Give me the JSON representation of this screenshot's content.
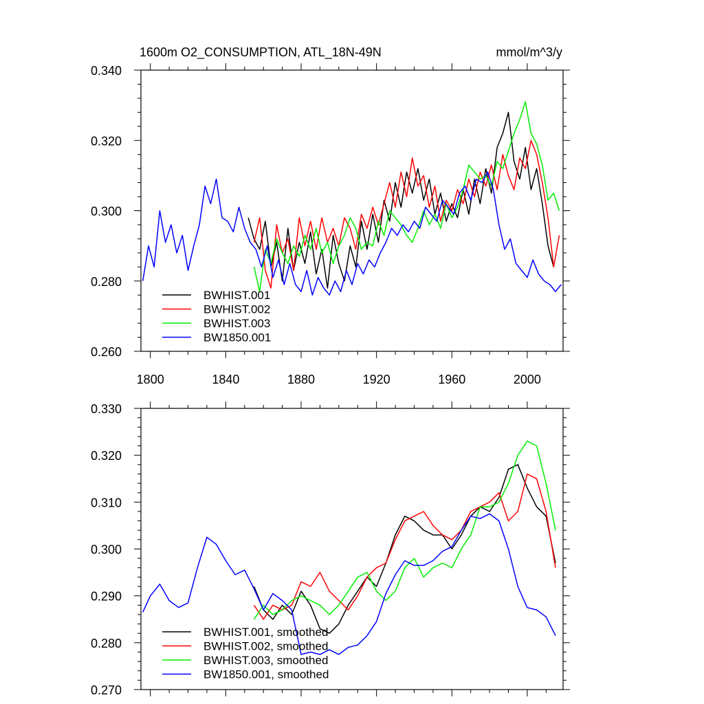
{
  "chart_data": [
    {
      "type": "line",
      "title": "1600m O2_CONSUMPTION, ATL_18N-49N",
      "units": "mmol/m^3/y",
      "xlim": [
        1795,
        2019
      ],
      "ylim": [
        0.26,
        0.34
      ],
      "xticks": [
        1800,
        1840,
        1880,
        1920,
        1960,
        2000
      ],
      "yticks": [
        0.26,
        0.28,
        0.3,
        0.32,
        0.34
      ],
      "ytick_labels": [
        "0.260",
        "0.280",
        "0.300",
        "0.320",
        "0.340"
      ],
      "legend_position": "bottom-left",
      "series": [
        {
          "name": "BWHIST.001",
          "color": "#000000",
          "x": [
            1852,
            1855,
            1858,
            1861,
            1864,
            1867,
            1870,
            1873,
            1876,
            1879,
            1882,
            1885,
            1888,
            1891,
            1894,
            1897,
            1900,
            1903,
            1906,
            1909,
            1912,
            1915,
            1918,
            1921,
            1924,
            1927,
            1930,
            1933,
            1936,
            1939,
            1942,
            1945,
            1948,
            1951,
            1954,
            1957,
            1960,
            1963,
            1966,
            1969,
            1972,
            1975,
            1978,
            1981,
            1984,
            1987,
            1990,
            1993,
            1996,
            1999,
            2002,
            2005,
            2008,
            2011,
            2014
          ],
          "y": [
            0.298,
            0.292,
            0.289,
            0.297,
            0.284,
            0.291,
            0.28,
            0.295,
            0.283,
            0.291,
            0.285,
            0.294,
            0.282,
            0.289,
            0.278,
            0.293,
            0.285,
            0.28,
            0.29,
            0.284,
            0.297,
            0.289,
            0.299,
            0.291,
            0.303,
            0.297,
            0.308,
            0.301,
            0.311,
            0.305,
            0.312,
            0.303,
            0.309,
            0.299,
            0.305,
            0.297,
            0.302,
            0.298,
            0.306,
            0.299,
            0.309,
            0.302,
            0.312,
            0.305,
            0.318,
            0.322,
            0.328,
            0.314,
            0.309,
            0.318,
            0.306,
            0.312,
            0.302,
            0.29,
            0.284
          ]
        },
        {
          "name": "BWHIST.002",
          "color": "#ff0000",
          "x": [
            1855,
            1858,
            1861,
            1864,
            1867,
            1870,
            1873,
            1876,
            1879,
            1882,
            1885,
            1888,
            1891,
            1894,
            1897,
            1900,
            1903,
            1906,
            1909,
            1912,
            1915,
            1918,
            1921,
            1924,
            1927,
            1930,
            1933,
            1936,
            1939,
            1942,
            1945,
            1948,
            1951,
            1954,
            1957,
            1960,
            1963,
            1966,
            1969,
            1972,
            1975,
            1978,
            1981,
            1984,
            1987,
            1990,
            1993,
            1996,
            1999,
            2002,
            2005,
            2008,
            2011,
            2014,
            2017
          ],
          "y": [
            0.291,
            0.298,
            0.283,
            0.278,
            0.296,
            0.288,
            0.292,
            0.283,
            0.298,
            0.29,
            0.297,
            0.289,
            0.298,
            0.291,
            0.295,
            0.29,
            0.298,
            0.295,
            0.289,
            0.299,
            0.295,
            0.301,
            0.296,
            0.302,
            0.308,
            0.301,
            0.311,
            0.304,
            0.315,
            0.307,
            0.31,
            0.301,
            0.307,
            0.297,
            0.303,
            0.3,
            0.306,
            0.302,
            0.309,
            0.304,
            0.311,
            0.307,
            0.313,
            0.306,
            0.316,
            0.31,
            0.306,
            0.315,
            0.312,
            0.32,
            0.316,
            0.308,
            0.298,
            0.284,
            0.293
          ]
        },
        {
          "name": "BWHIST.003",
          "color": "#00ee00",
          "x": [
            1855,
            1858,
            1861,
            1864,
            1867,
            1870,
            1873,
            1876,
            1879,
            1882,
            1885,
            1888,
            1891,
            1894,
            1897,
            1900,
            1903,
            1906,
            1909,
            1912,
            1915,
            1918,
            1921,
            1924,
            1927,
            1930,
            1933,
            1936,
            1939,
            1942,
            1945,
            1948,
            1951,
            1954,
            1957,
            1960,
            1963,
            1966,
            1969,
            1972,
            1975,
            1978,
            1981,
            1984,
            1987,
            1990,
            1993,
            1996,
            1999,
            2002,
            2005,
            2008,
            2011,
            2014,
            2017
          ],
          "y": [
            0.284,
            0.277,
            0.289,
            0.285,
            0.292,
            0.288,
            0.285,
            0.29,
            0.287,
            0.293,
            0.289,
            0.295,
            0.288,
            0.291,
            0.285,
            0.29,
            0.293,
            0.298,
            0.295,
            0.289,
            0.291,
            0.29,
            0.297,
            0.293,
            0.3,
            0.298,
            0.296,
            0.293,
            0.291,
            0.295,
            0.3,
            0.296,
            0.299,
            0.295,
            0.302,
            0.298,
            0.301,
            0.306,
            0.313,
            0.311,
            0.309,
            0.31,
            0.307,
            0.314,
            0.312,
            0.317,
            0.322,
            0.326,
            0.331,
            0.322,
            0.319,
            0.313,
            0.303,
            0.305,
            0.3
          ]
        },
        {
          "name": "BW1850.001",
          "color": "#0000ff",
          "x": [
            1796,
            1799,
            1802,
            1805,
            1808,
            1811,
            1814,
            1817,
            1820,
            1823,
            1826,
            1829,
            1832,
            1835,
            1838,
            1841,
            1844,
            1847,
            1850,
            1853,
            1856,
            1859,
            1862,
            1865,
            1868,
            1871,
            1874,
            1877,
            1880,
            1883,
            1886,
            1889,
            1892,
            1895,
            1898,
            1901,
            1904,
            1907,
            1910,
            1913,
            1916,
            1919,
            1922,
            1925,
            1928,
            1931,
            1934,
            1937,
            1940,
            1943,
            1946,
            1949,
            1952,
            1955,
            1958,
            1961,
            1964,
            1967,
            1970,
            1973,
            1976,
            1979,
            1982,
            1985,
            1988,
            1991,
            1994,
            1997,
            2000,
            2003,
            2006,
            2009,
            2012,
            2015,
            2018
          ],
          "y": [
            0.28,
            0.29,
            0.284,
            0.3,
            0.291,
            0.296,
            0.288,
            0.293,
            0.283,
            0.29,
            0.296,
            0.307,
            0.302,
            0.309,
            0.298,
            0.297,
            0.294,
            0.301,
            0.295,
            0.291,
            0.289,
            0.284,
            0.29,
            0.281,
            0.286,
            0.279,
            0.285,
            0.279,
            0.277,
            0.283,
            0.276,
            0.281,
            0.278,
            0.276,
            0.28,
            0.277,
            0.283,
            0.279,
            0.285,
            0.282,
            0.286,
            0.284,
            0.288,
            0.291,
            0.295,
            0.293,
            0.296,
            0.294,
            0.297,
            0.295,
            0.301,
            0.299,
            0.297,
            0.303,
            0.301,
            0.299,
            0.305,
            0.307,
            0.303,
            0.309,
            0.308,
            0.311,
            0.306,
            0.296,
            0.289,
            0.292,
            0.285,
            0.283,
            0.281,
            0.286,
            0.282,
            0.28,
            0.279,
            0.277,
            0.279
          ]
        }
      ]
    },
    {
      "type": "line",
      "title": "",
      "xlim": [
        1795,
        2019
      ],
      "ylim": [
        0.27,
        0.33
      ],
      "xticks": [
        1800,
        1840,
        1880,
        1920,
        1960,
        2000
      ],
      "yticks": [
        0.27,
        0.28,
        0.29,
        0.3,
        0.31,
        0.32,
        0.33
      ],
      "ytick_labels": [
        "0.270",
        "0.280",
        "0.290",
        "0.300",
        "0.310",
        "0.320",
        "0.330"
      ],
      "legend_position": "bottom-left",
      "series": [
        {
          "name": "BWHIST.001, smoothed",
          "color": "#000000",
          "x": [
            1855,
            1860,
            1865,
            1870,
            1875,
            1880,
            1885,
            1890,
            1895,
            1900,
            1905,
            1910,
            1915,
            1920,
            1925,
            1930,
            1935,
            1940,
            1945,
            1950,
            1955,
            1960,
            1965,
            1970,
            1975,
            1980,
            1985,
            1990,
            1995,
            2000,
            2005,
            2010,
            2015
          ],
          "y": [
            0.292,
            0.287,
            0.285,
            0.288,
            0.286,
            0.291,
            0.288,
            0.283,
            0.282,
            0.284,
            0.288,
            0.291,
            0.294,
            0.292,
            0.297,
            0.303,
            0.307,
            0.306,
            0.304,
            0.303,
            0.303,
            0.3,
            0.303,
            0.307,
            0.309,
            0.308,
            0.311,
            0.317,
            0.318,
            0.313,
            0.309,
            0.307,
            0.297
          ]
        },
        {
          "name": "BWHIST.002, smoothed",
          "color": "#ff0000",
          "x": [
            1855,
            1860,
            1865,
            1870,
            1875,
            1880,
            1885,
            1890,
            1895,
            1900,
            1905,
            1910,
            1915,
            1920,
            1925,
            1930,
            1935,
            1940,
            1945,
            1950,
            1955,
            1960,
            1965,
            1970,
            1975,
            1980,
            1985,
            1990,
            1995,
            2000,
            2005,
            2010,
            2015
          ],
          "y": [
            0.288,
            0.285,
            0.288,
            0.287,
            0.288,
            0.293,
            0.292,
            0.295,
            0.291,
            0.289,
            0.287,
            0.29,
            0.294,
            0.296,
            0.297,
            0.302,
            0.306,
            0.307,
            0.308,
            0.305,
            0.303,
            0.302,
            0.304,
            0.308,
            0.309,
            0.31,
            0.312,
            0.306,
            0.308,
            0.316,
            0.315,
            0.308,
            0.296
          ]
        },
        {
          "name": "BWHIST.003, smoothed",
          "color": "#00ee00",
          "x": [
            1855,
            1860,
            1865,
            1870,
            1875,
            1880,
            1885,
            1890,
            1895,
            1900,
            1905,
            1910,
            1915,
            1920,
            1925,
            1930,
            1935,
            1940,
            1945,
            1950,
            1955,
            1960,
            1965,
            1970,
            1975,
            1980,
            1985,
            1990,
            1995,
            2000,
            2005,
            2010,
            2015
          ],
          "y": [
            0.285,
            0.288,
            0.286,
            0.287,
            0.289,
            0.29,
            0.289,
            0.288,
            0.286,
            0.288,
            0.291,
            0.294,
            0.295,
            0.291,
            0.289,
            0.291,
            0.296,
            0.298,
            0.294,
            0.296,
            0.297,
            0.296,
            0.3,
            0.303,
            0.309,
            0.309,
            0.31,
            0.314,
            0.32,
            0.323,
            0.322,
            0.314,
            0.304
          ]
        },
        {
          "name": "BW1850.001, smoothed",
          "color": "#0000ff",
          "x": [
            1796,
            1800,
            1805,
            1810,
            1815,
            1820,
            1825,
            1830,
            1835,
            1840,
            1845,
            1850,
            1855,
            1860,
            1865,
            1870,
            1875,
            1880,
            1885,
            1890,
            1895,
            1900,
            1905,
            1910,
            1915,
            1920,
            1925,
            1930,
            1935,
            1940,
            1945,
            1950,
            1955,
            1960,
            1965,
            1970,
            1975,
            1980,
            1985,
            1990,
            1995,
            2000,
            2005,
            2010,
            2015
          ],
          "y": [
            0.2865,
            0.29,
            0.2925,
            0.289,
            0.2875,
            0.2885,
            0.296,
            0.3025,
            0.301,
            0.2975,
            0.2945,
            0.2955,
            0.2915,
            0.287,
            0.2905,
            0.289,
            0.287,
            0.2775,
            0.278,
            0.2775,
            0.2785,
            0.2775,
            0.279,
            0.2795,
            0.2815,
            0.2845,
            0.2905,
            0.2945,
            0.2975,
            0.2965,
            0.2965,
            0.2975,
            0.2995,
            0.3005,
            0.304,
            0.307,
            0.3065,
            0.3075,
            0.306,
            0.3,
            0.292,
            0.2875,
            0.287,
            0.2855,
            0.2815
          ]
        }
      ]
    }
  ]
}
